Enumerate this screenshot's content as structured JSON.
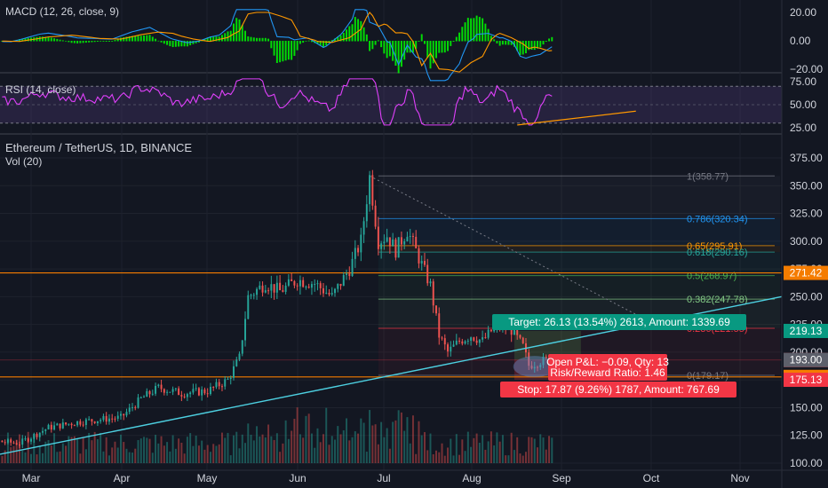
{
  "title": "Ethereum / TetherUS, 1D, BINANCE",
  "volume_label": "Vol (20)",
  "macd": {
    "label": "MACD (12, 26, close, 9)",
    "ticks": [
      "20.00",
      "0.00",
      "−20.00"
    ],
    "tick_values": [
      20,
      0,
      -20
    ],
    "colors": {
      "macd": "#2196f3",
      "signal": "#ff9800",
      "histogram": "#00ff00"
    }
  },
  "rsi": {
    "label": "RSI (14, close)",
    "ticks": [
      "75.00",
      "50.00",
      "25.00"
    ],
    "tick_values": [
      75,
      50,
      25
    ],
    "color": "#e040fb"
  },
  "price_axis": {
    "ticks": [
      "375.00",
      "350.00",
      "325.00",
      "300.00",
      "275.00",
      "250.00",
      "225.00",
      "200.00",
      "175.00",
      "150.00",
      "125.00",
      "100.00"
    ],
    "tick_values": [
      375,
      350,
      325,
      300,
      275,
      250,
      225,
      200,
      175,
      150,
      125,
      100
    ]
  },
  "price_badges": [
    {
      "text": "271.42",
      "value": 271.42,
      "color": "#f57c00"
    },
    {
      "text": "219.13",
      "value": 219.13,
      "color": "#089981"
    },
    {
      "text": "192.91",
      "value": 192.91,
      "color": "#f23645"
    },
    {
      "text": "193.00",
      "value": 193.0,
      "color": "#5d606b"
    },
    {
      "text": "177.70",
      "value": 177.7,
      "color": "#f57c00"
    },
    {
      "text": "175.13",
      "value": 175.13,
      "color": "#f23645"
    }
  ],
  "x_axis": {
    "labels": [
      "Mar",
      "Apr",
      "May",
      "Jun",
      "Jul",
      "Aug",
      "Sep",
      "Oct",
      "Nov"
    ]
  },
  "fib_levels": [
    {
      "label": "1(358.77)",
      "value": 358.77,
      "color": "#787b86"
    },
    {
      "label": "0.786(320.34)",
      "value": 320.34,
      "color": "#2196f3"
    },
    {
      "label": "0.65(295.91)",
      "value": 295.91,
      "color": "#ff9800"
    },
    {
      "label": "0.618(290.16)",
      "value": 290.16,
      "color": "#26a69a"
    },
    {
      "label": "0.5(268.97)",
      "value": 268.97,
      "color": "#4caf50"
    },
    {
      "label": "0.382(247.78)",
      "value": 247.78,
      "color": "#81c784"
    },
    {
      "label": "0.236(221.55)",
      "value": 221.55,
      "color": "#f23645"
    },
    {
      "label": "0(179.17)",
      "value": 179.17,
      "color": "#787b86"
    }
  ],
  "horizontal_levels": [
    {
      "value": 271.42,
      "color": "#f57c00"
    },
    {
      "value": 177.7,
      "color": "#f57c00"
    }
  ],
  "position": {
    "target_text": "Target: 26.13 (13.54%) 2613, Amount: 1339.69",
    "pnl_text": "Open P&L: −0.09, Qty: 13",
    "rr_text": "Risk/Reward Ratio: 1.46",
    "stop_text": "Stop: 17.87 (9.26%) 1787, Amount: 767.69",
    "entry": 193.0,
    "target": 219.13,
    "stop": 175.13
  },
  "chart_data": {
    "type": "candlestick",
    "series": [
      {
        "name": "Ethereum / TetherUS",
        "ohlc": [
          {
            "x": "2019-02-15",
            "close": 122
          },
          {
            "x": "2019-03-01",
            "close": 134
          },
          {
            "x": "2019-03-15",
            "close": 136
          },
          {
            "x": "2019-04-01",
            "close": 142
          },
          {
            "x": "2019-04-15",
            "close": 165
          },
          {
            "x": "2019-04-30",
            "close": 162
          },
          {
            "x": "2019-05-11",
            "close": 195
          },
          {
            "x": "2019-05-15",
            "close": 250
          },
          {
            "x": "2019-06-01",
            "close": 265
          },
          {
            "x": "2019-06-15",
            "close": 270
          },
          {
            "x": "2019-06-26",
            "close": 358
          },
          {
            "x": "2019-07-01",
            "close": 300
          },
          {
            "x": "2019-07-10",
            "close": 310
          },
          {
            "x": "2019-07-17",
            "close": 200
          },
          {
            "x": "2019-08-01",
            "close": 218
          },
          {
            "x": "2019-08-06",
            "close": 232
          },
          {
            "x": "2019-08-15",
            "close": 185
          },
          {
            "x": "2019-08-21",
            "close": 193
          }
        ]
      }
    ],
    "ylim": [
      100,
      380
    ]
  }
}
